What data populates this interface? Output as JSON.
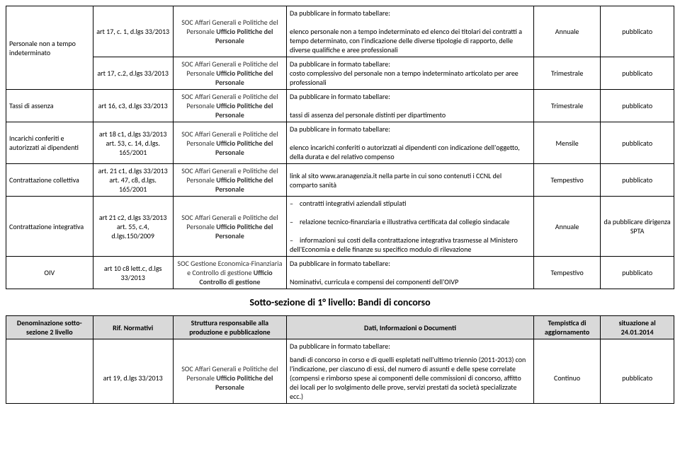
{
  "t1": {
    "rows": [
      {
        "c1": "Personale non a tempo indeterminato",
        "c1rs": 2,
        "c2": "art 17, c. 1, d.lgs 33/2013",
        "c3": "SOC Affari Generali e Politiche del Personale <b>Ufficio Politiche del Personale</b>",
        "c4": "Da pubblicare in formato tabellare:<br><br>elenco personale non a tempo indeterminato ed elenco dei titolari dei contratti a tempo determinato, con l'indicazione delle diverse tipologie di rapporto, delle diverse qualifiche e aree professionali",
        "c5": "Annuale",
        "c6": "pubblicato"
      },
      {
        "c2": "art 17, c.2, d.lgs 33/2013",
        "c3": "SOC Affari Generali e Politiche del Personale <b>Ufficio Politiche del Personale</b>",
        "c4": "Da pubblicare in formato tabellare:<br>costo complessivo del personale non a tempo indeterminato articolato per aree professionali",
        "c5": "Trimestrale",
        "c6": "pubblicato"
      },
      {
        "c1": "Tassi di assenza",
        "c2": "art 16, c3, d.lgs 33/2013",
        "c3": "SOC Affari Generali e Politiche del Personale <b>Ufficio Politiche del Personale</b>",
        "c4": "Da pubblicare in formato tabellare:<br><br>tassi di assenza del personale distinti per dipartimento",
        "c5": "Trimestrale",
        "c6": "pubblicato"
      },
      {
        "c1": "Incarichi conferiti e autorizzati ai dipendenti",
        "c2": "art 18 c1, d.lgs 33/2013 art. 53, c. 14, d.lgs. 165/2001",
        "c3": "SOC Affari Generali e Politiche del Personale <b>Ufficio Politiche del Personale</b>",
        "c4": "Da pubblicare in formato tabellare:<br><br>elenco incarichi conferiti o autorizzati ai dipendenti con indicazione dell'oggetto, della durata e del relativo compenso",
        "c5": "Mensile",
        "c6": "pubblicato"
      },
      {
        "c1": "Contrattazione collettiva",
        "c2": "art. 21 c1, d.lgs 33/2013 art. 47, c8, d.lgs. 165/2001",
        "c3": "SOC Affari Generali e Politiche del Personale <b>Ufficio Politiche del Personale</b>",
        "c4": "link al sito www.aranagenzia.it nella parte in cui sono contenuti i CCNL del comparto sanità",
        "c5": "Tempestivo",
        "c6": "pubblicato"
      },
      {
        "c1": "Contrattazione integrativa",
        "c2": "art 21 c2, d.lgs 33/2013 art. 55, c.4, d.lgs.150/2009",
        "c3": "SOC Affari Generali e Politiche del Personale <b>Ufficio Politiche del Personale</b>",
        "c4": "– &nbsp;&nbsp;&nbsp;contratti integrativi aziendali stipulati<br><br>– &nbsp;&nbsp;&nbsp;relazione tecnico-finanziaria e illustrativa certificata dal collegio sindacale<br><br>– &nbsp;&nbsp;&nbsp;informazioni sui costi della contrattazione integrativa trasmesse al Ministero dell'Economia e delle finanze su specifico modulo di rilevazione",
        "c5": "Annuale",
        "c6": "da pubblicare dirigenza SPTA"
      },
      {
        "c1": "OIV",
        "c1c": "center",
        "c2": "art 10 c8 lett.c, d.lgs 33/2013",
        "c3": "SOC Gestione Economica-Finanziaria e Controllo di gestione <b>Ufficio Controllo di gestione</b>",
        "c4": "Da pubblicare in formato tabellare:<br><br>Nominativi, curricula e compensi dei componenti dell'OIVP",
        "c5": "Tempestivo",
        "c6": "pubblicato"
      }
    ]
  },
  "sec": {
    "title": "Sotto-sezione di 1° livello: Bandi di concorso"
  },
  "t2": {
    "h": [
      "Denominazione sotto-sezione 2 livello",
      "Rif. Normativi",
      "Struttura responsabile alla produzione e pubblicazione",
      "Dati, Informazioni o Documenti",
      "Tempistica di aggiornamento",
      "situazione al 24.01.2014"
    ],
    "rows": [
      {
        "c1": "",
        "c1rs": 2,
        "c2": "",
        "c2rs": 1,
        "c3": "",
        "c4": "Da pubblicare in formato tabellare:",
        "c5": "",
        "c6": "",
        "open": true
      },
      {
        "c2": "art 19, d.lgs 33/2013",
        "c3": "SOC Affari Generali e Politiche del Personale <b>Ufficio Politiche del Personale</b>",
        "c4": "bandi di concorso in corso e di quelli espletati nell'ultimo triennio (2011-2013) con l'indicazione, per ciascuno di essi, del numero di assunti e delle spese correlate (compensi e rimborso spese ai componenti delle commissioni di concorso, affitto dei locali per lo svolgimento delle prove, servizi prestati da società specializzate ecc.)",
        "c5": "Continuo",
        "c6": "pubblicato"
      }
    ]
  }
}
